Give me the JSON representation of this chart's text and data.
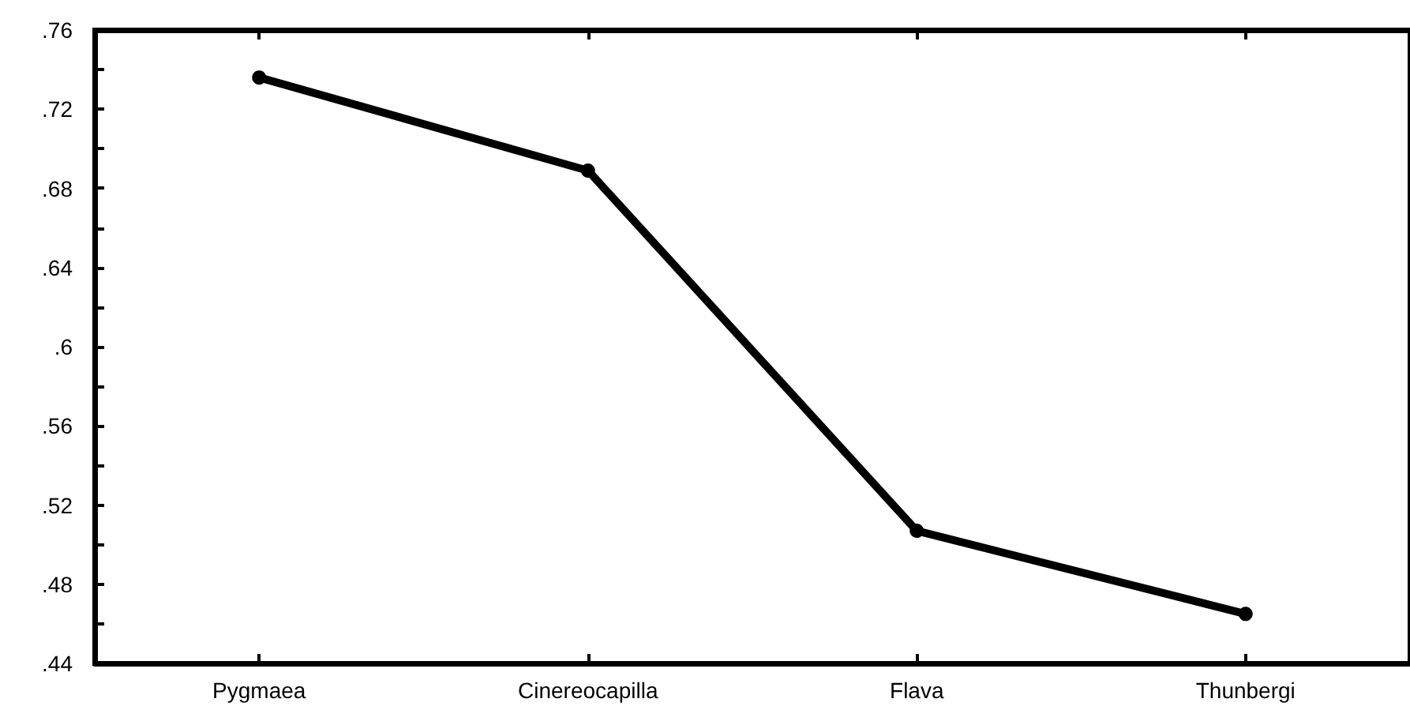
{
  "chart_data": {
    "type": "line",
    "categories": [
      "Pygmaea",
      "Cinereocapilla",
      "Flava",
      "Thunbergi"
    ],
    "series": [
      {
        "color": "#000000",
        "values": [
          0.736,
          0.689,
          0.507,
          0.465
        ]
      }
    ],
    "ylim": [
      0.44,
      0.76
    ],
    "yticks": [
      {
        "value": 0.44,
        "label": ".44"
      },
      {
        "value": 0.46,
        "label": null
      },
      {
        "value": 0.48,
        "label": ".48"
      },
      {
        "value": 0.5,
        "label": null
      },
      {
        "value": 0.52,
        "label": ".52"
      },
      {
        "value": 0.54,
        "label": null
      },
      {
        "value": 0.56,
        "label": ".56"
      },
      {
        "value": 0.58,
        "label": null
      },
      {
        "value": 0.6,
        "label": ".6"
      },
      {
        "value": 0.62,
        "label": null
      },
      {
        "value": 0.64,
        "label": ".64"
      },
      {
        "value": 0.66,
        "label": null
      },
      {
        "value": 0.68,
        "label": ".68"
      },
      {
        "value": 0.7,
        "label": null
      },
      {
        "value": 0.72,
        "label": ".72"
      },
      {
        "value": 0.74,
        "label": null
      },
      {
        "value": 0.76,
        "label": ".76"
      }
    ],
    "grid": false,
    "marker": "circle",
    "line_style": "solid"
  }
}
